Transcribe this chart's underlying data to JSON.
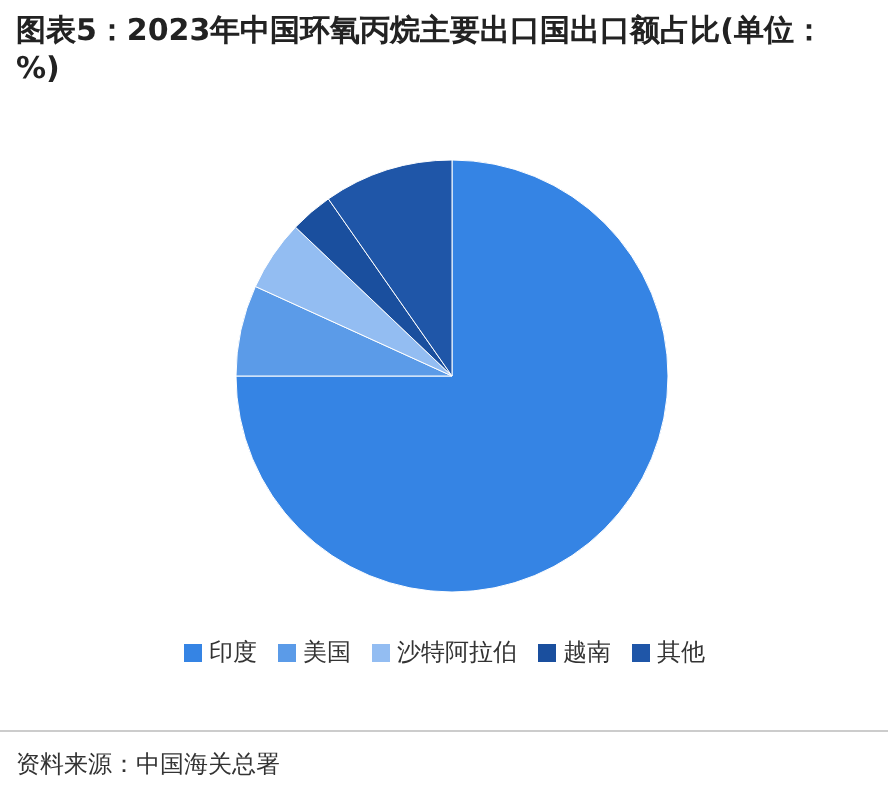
{
  "chart_data": {
    "type": "pie",
    "title": "图表5：2023年中国环氧丙烷主要出口国出口额占比(单位：%)",
    "categories": [
      "印度",
      "美国",
      "沙特阿拉伯",
      "越南",
      "其他"
    ],
    "values": [
      75,
      6.8,
      5.3,
      3.2,
      9.7
    ],
    "colors": [
      "#3584e4",
      "#5b9be8",
      "#93bdf2",
      "#1a4f9e",
      "#1f56a8"
    ],
    "legend": "bottom",
    "annotations": [
      "资料来源：中国海关总署"
    ]
  }
}
